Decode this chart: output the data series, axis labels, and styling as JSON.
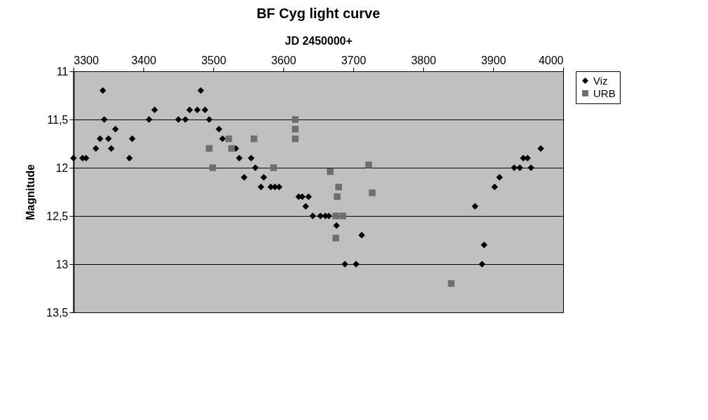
{
  "chart_data": {
    "type": "scatter",
    "title": "BF Cyg light curve",
    "xlabel": "JD 2450000+",
    "ylabel": "Magnitude",
    "xlim": [
      3300,
      4000
    ],
    "xticks": [
      3300,
      3400,
      3500,
      3600,
      3700,
      3800,
      3900,
      4000
    ],
    "ylim": [
      13.5,
      11
    ],
    "yticks": [
      11,
      {
        "value": 11.5,
        "label": "11,5"
      },
      12,
      {
        "value": 12.5,
        "label": "12,5"
      },
      13,
      {
        "value": 13.5,
        "label": "13,5"
      }
    ],
    "grid": "y",
    "legend": "right",
    "series": [
      {
        "name": "Viz",
        "color": "#000000",
        "marker": "diamond",
        "x": [
          3300,
          3313,
          3318,
          3332,
          3338,
          3342,
          3344,
          3350,
          3354,
          3360,
          3380,
          3384,
          3408,
          3416,
          3450,
          3460,
          3466,
          3477,
          3482,
          3488,
          3494,
          3508,
          3513,
          3532,
          3537,
          3544,
          3554,
          3560,
          3568,
          3572,
          3582,
          3588,
          3594,
          3622,
          3627,
          3632,
          3636,
          3642,
          3653,
          3660,
          3665,
          3676,
          3688,
          3704,
          3712,
          3874,
          3884,
          3887,
          3902,
          3909,
          3930,
          3938,
          3943,
          3949,
          3954,
          3968
        ],
        "values": [
          11.9,
          11.9,
          11.9,
          11.8,
          11.7,
          11.2,
          11.5,
          11.7,
          11.8,
          11.6,
          11.9,
          11.7,
          11.5,
          11.4,
          11.5,
          11.5,
          11.4,
          11.4,
          11.2,
          11.4,
          11.5,
          11.6,
          11.7,
          11.8,
          11.9,
          12.1,
          11.9,
          12.0,
          12.2,
          12.1,
          12.2,
          12.2,
          12.2,
          12.3,
          12.3,
          12.4,
          12.3,
          12.5,
          12.5,
          12.5,
          12.5,
          12.6,
          13.0,
          13.0,
          12.7,
          12.4,
          13.0,
          12.8,
          12.2,
          12.1,
          12.0,
          12.0,
          11.9,
          11.9,
          12.0,
          11.8
        ]
      },
      {
        "name": "URB",
        "color": "#6e6e6e",
        "marker": "square",
        "x": [
          3494,
          3499,
          3522,
          3526,
          3558,
          3586,
          3617,
          3617,
          3617,
          3667,
          3675,
          3677,
          3679,
          3675,
          3685,
          3722,
          3727,
          3840
        ],
        "values": [
          11.8,
          12.0,
          11.7,
          11.8,
          11.7,
          12.0,
          11.5,
          11.6,
          11.7,
          12.04,
          12.73,
          12.3,
          12.2,
          12.5,
          12.5,
          11.97,
          12.26,
          13.2
        ]
      }
    ]
  }
}
